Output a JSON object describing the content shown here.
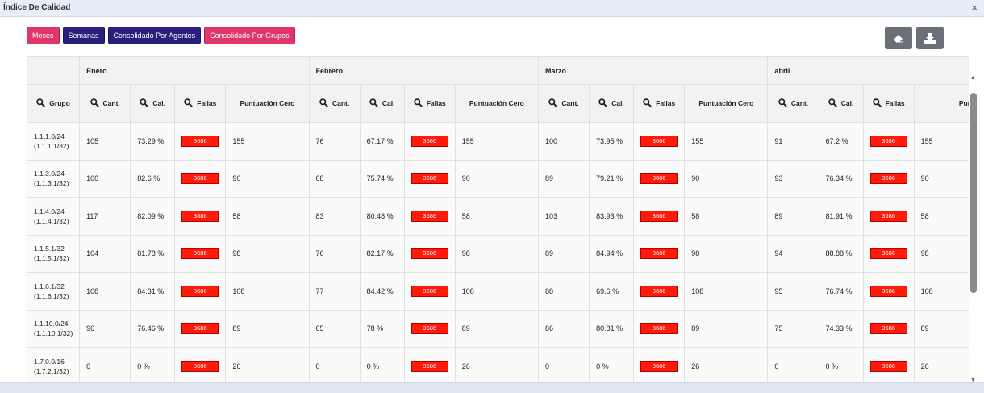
{
  "window": {
    "title": "Índice De Calidad",
    "close_icon": "×"
  },
  "buttons": [
    {
      "label": "Meses",
      "color": "#e0356b"
    },
    {
      "label": "Semanas",
      "color": "#2a1f7d"
    },
    {
      "label": "Consolidado Por Agentes",
      "color": "#2a1f7d"
    },
    {
      "label": "Consolidado Por Grupos",
      "color": "#e0356b"
    }
  ],
  "tools": [
    "eraser-icon",
    "download-icon"
  ],
  "table": {
    "group_header": "Grupo",
    "months": [
      "Enero",
      "Febrero",
      "Marzo",
      "abril"
    ],
    "columns": [
      "Cant.",
      "Cal.",
      "Fallas",
      "Puntuación Cero"
    ],
    "fallas_badge_color": "#ff1a0a",
    "rows": [
      {
        "group": [
          "1.1.1.0/24",
          "(1.1.1.1/32)"
        ],
        "months": [
          {
            "cant": "105",
            "cal": "73.29 %",
            "fallas": "3686",
            "cero": "155"
          },
          {
            "cant": "76",
            "cal": "67.17 %",
            "fallas": "3686",
            "cero": "155"
          },
          {
            "cant": "100",
            "cal": "73.95 %",
            "fallas": "3686",
            "cero": "155"
          },
          {
            "cant": "91",
            "cal": "67.2 %",
            "fallas": "3686",
            "cero": "155"
          }
        ]
      },
      {
        "group": [
          "1.1.3.0/24",
          "(1.1.3.1/32)"
        ],
        "months": [
          {
            "cant": "100",
            "cal": "82.6 %",
            "fallas": "3686",
            "cero": "90"
          },
          {
            "cant": "68",
            "cal": "75.74 %",
            "fallas": "3686",
            "cero": "90"
          },
          {
            "cant": "89",
            "cal": "79.21 %",
            "fallas": "3686",
            "cero": "90"
          },
          {
            "cant": "93",
            "cal": "76.34 %",
            "fallas": "3686",
            "cero": "90"
          }
        ]
      },
      {
        "group": [
          "1.1.4.0/24",
          "(1.1.4.1/32)"
        ],
        "months": [
          {
            "cant": "117",
            "cal": "82.09 %",
            "fallas": "3686",
            "cero": "58"
          },
          {
            "cant": "83",
            "cal": "80.48 %",
            "fallas": "3686",
            "cero": "58"
          },
          {
            "cant": "103",
            "cal": "83.93 %",
            "fallas": "3686",
            "cero": "58"
          },
          {
            "cant": "89",
            "cal": "81.91 %",
            "fallas": "3686",
            "cero": "58"
          }
        ]
      },
      {
        "group": [
          "1.1.5.1/32",
          "(1.1.5.1/32)"
        ],
        "months": [
          {
            "cant": "104",
            "cal": "81.78 %",
            "fallas": "3686",
            "cero": "98"
          },
          {
            "cant": "76",
            "cal": "82.17 %",
            "fallas": "3686",
            "cero": "98"
          },
          {
            "cant": "89",
            "cal": "84.94 %",
            "fallas": "3686",
            "cero": "98"
          },
          {
            "cant": "94",
            "cal": "88.88 %",
            "fallas": "3686",
            "cero": "98"
          }
        ]
      },
      {
        "group": [
          "1.1.6.1/32",
          "(1.1.6.1/32)"
        ],
        "months": [
          {
            "cant": "108",
            "cal": "84.31 %",
            "fallas": "3686",
            "cero": "108"
          },
          {
            "cant": "77",
            "cal": "84.42 %",
            "fallas": "3686",
            "cero": "108"
          },
          {
            "cant": "88",
            "cal": "69.6 %",
            "fallas": "3686",
            "cero": "108"
          },
          {
            "cant": "95",
            "cal": "76.74 %",
            "fallas": "3686",
            "cero": "108"
          }
        ]
      },
      {
        "group": [
          "1.1.10.0/24",
          "(1.1.10.1/32)"
        ],
        "months": [
          {
            "cant": "96",
            "cal": "76.46 %",
            "fallas": "3686",
            "cero": "89"
          },
          {
            "cant": "65",
            "cal": "78 %",
            "fallas": "3686",
            "cero": "89"
          },
          {
            "cant": "86",
            "cal": "80.81 %",
            "fallas": "3686",
            "cero": "89"
          },
          {
            "cant": "75",
            "cal": "74.33 %",
            "fallas": "3686",
            "cero": "89"
          }
        ]
      },
      {
        "group": [
          "1.7.0.0/16",
          "(1.7.2.1/32)"
        ],
        "months": [
          {
            "cant": "0",
            "cal": "0 %",
            "fallas": "3686",
            "cero": "26"
          },
          {
            "cant": "0",
            "cal": "0 %",
            "fallas": "3686",
            "cero": "26"
          },
          {
            "cant": "0",
            "cal": "0 %",
            "fallas": "3686",
            "cero": "26"
          },
          {
            "cant": "0",
            "cal": "0 %",
            "fallas": "3686",
            "cero": "26"
          }
        ]
      }
    ]
  }
}
